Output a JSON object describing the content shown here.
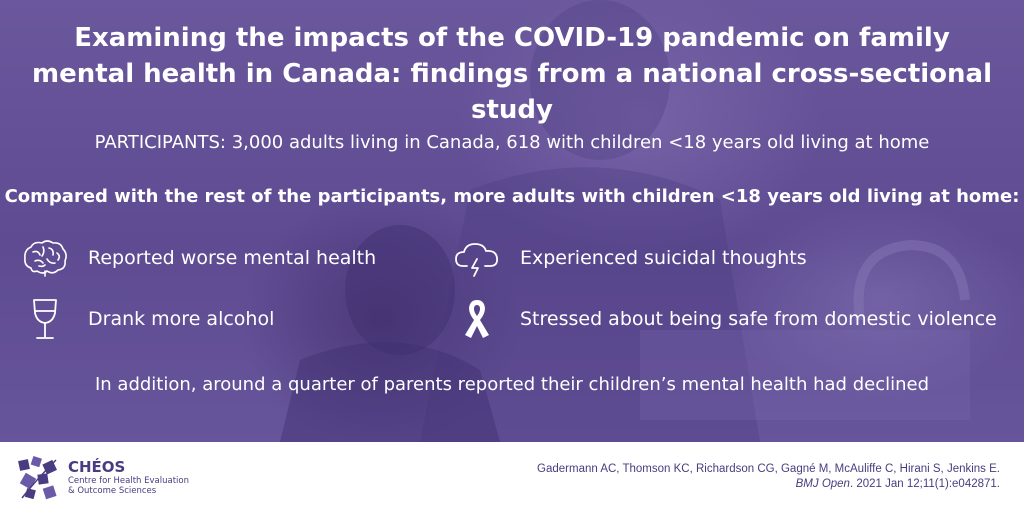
{
  "infographic": {
    "title": "Examining the impacts of the COVID-19 pandemic on family mental health in Canada: findings from a national cross-sectional study",
    "participants": "PARTICIPANTS: 3,000 adults living in Canada, 618 with children <18 years old living at home",
    "comparison_heading": "Compared with the rest of the participants, more adults with children <18 years old living at home:",
    "findings": [
      {
        "icon": "brain-icon",
        "text": "Reported worse mental health"
      },
      {
        "icon": "storm-cloud-icon",
        "text": "Experienced suicidal thoughts"
      },
      {
        "icon": "wine-glass-icon",
        "text": "Drank more alcohol"
      },
      {
        "icon": "awareness-ribbon-icon",
        "text": "Stressed about being safe from domestic violence"
      }
    ],
    "addition": "In addition, around a quarter of parents reported their children’s mental health had declined"
  },
  "footer": {
    "logo_name": "CHÉOS",
    "logo_subtitle_line1": "Centre for Health Evaluation",
    "logo_subtitle_line2": "& Outcome Sciences",
    "citation_authors": "Gadermann AC, Thomson KC, Richardson CG, Gagné M, McAuliffe C, Hirani S, Jenkins E.",
    "citation_journal": "BMJ Open",
    "citation_details": ". 2021 Jan 12;11(1):e042871."
  },
  "colors": {
    "overlay_purple": "#5e4b92",
    "text_white": "#ffffff",
    "brand_purple": "#4a3c80"
  }
}
